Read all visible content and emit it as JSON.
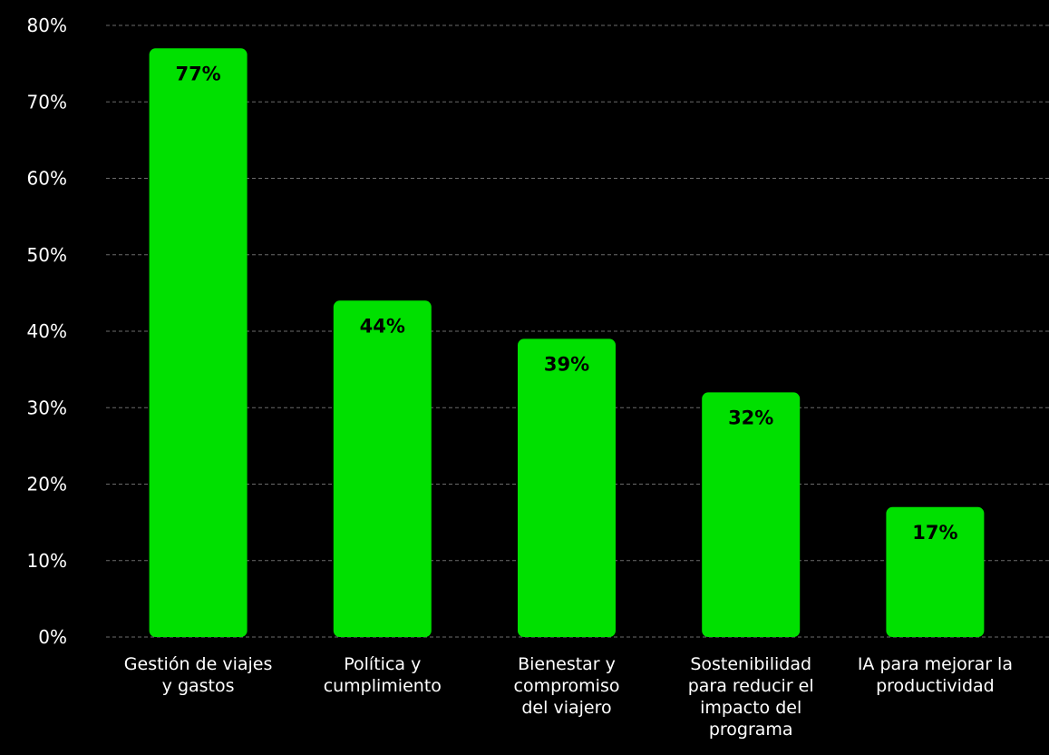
{
  "chart_data": {
    "type": "bar",
    "title": "",
    "xlabel": "",
    "ylabel": "",
    "categories": [
      "Gestión de viajes y gastos",
      "Política y cumplimiento",
      "Bienestar y compromiso del viajero",
      "Sostenibilidad para reducir el impacto del programa",
      "IA para mejorar la productividad"
    ],
    "category_lines": [
      [
        "Gestión de viajes",
        "y gastos"
      ],
      [
        "Política y",
        "cumplimiento"
      ],
      [
        "Bienestar y",
        "compromiso",
        "del viajero"
      ],
      [
        "Sostenibilidad",
        "para reducir el",
        "impacto del",
        "programa"
      ],
      [
        "IA para mejorar la",
        "productividad"
      ]
    ],
    "values": [
      77,
      44,
      39,
      32,
      17
    ],
    "value_labels": [
      "77%",
      "44%",
      "39%",
      "32%",
      "17%"
    ],
    "ylim": [
      0,
      80
    ],
    "yticks": [
      0,
      10,
      20,
      30,
      40,
      50,
      60,
      70,
      80
    ],
    "ytick_labels": [
      "0%",
      "10%",
      "20%",
      "30%",
      "40%",
      "50%",
      "60%",
      "70%",
      "80%"
    ],
    "grid": true,
    "legend": "none",
    "colors": {
      "background": "#000000",
      "bar": "#00e000",
      "grid": "#6b6b6b",
      "text": "#ffffff",
      "bar_label": "#000000"
    }
  }
}
